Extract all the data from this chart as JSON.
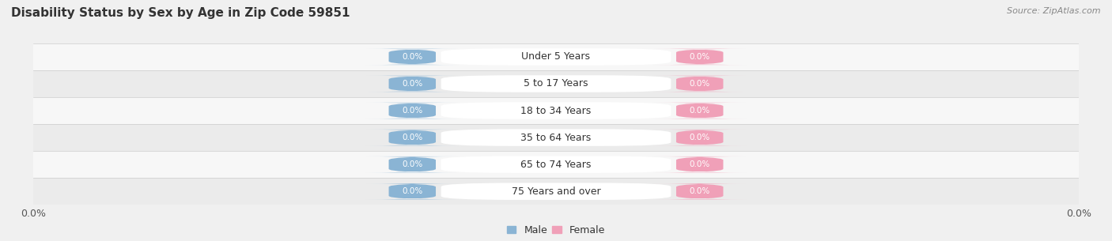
{
  "title": "Disability Status by Sex by Age in Zip Code 59851",
  "source": "Source: ZipAtlas.com",
  "categories": [
    "Under 5 Years",
    "5 to 17 Years",
    "18 to 34 Years",
    "35 to 64 Years",
    "65 to 74 Years",
    "75 Years and over"
  ],
  "male_values": [
    0.0,
    0.0,
    0.0,
    0.0,
    0.0,
    0.0
  ],
  "female_values": [
    0.0,
    0.0,
    0.0,
    0.0,
    0.0,
    0.0
  ],
  "male_color": "#8ab4d4",
  "female_color": "#f0a0b8",
  "bg_color": "#f0f0f0",
  "row_light": "#f7f7f7",
  "row_dark": "#ebebeb",
  "title_fontsize": 11,
  "label_fontsize": 9,
  "tick_fontsize": 9,
  "source_fontsize": 8,
  "bar_height": 0.6,
  "center_pill_color": "#ffffff",
  "center_text_color": "#333333",
  "value_text_color": "#ffffff"
}
